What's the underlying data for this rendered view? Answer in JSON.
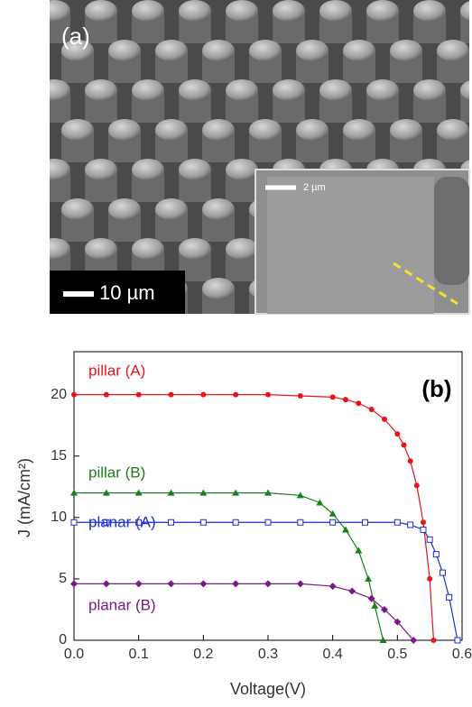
{
  "image_panel": {
    "label": "(a)",
    "scale_bar": "10 µm",
    "inset_scale_bar": "2 µm"
  },
  "chart_data": {
    "type": "line",
    "label": "(b)",
    "x_label": "Voltage(V)",
    "y_label": "J (mA/cm²)",
    "xlim": [
      0,
      0.6
    ],
    "xticks": [
      {
        "value": 0,
        "label": "0.0"
      },
      0.1,
      0.2,
      0.3,
      0.4,
      0.5,
      0.6
    ],
    "ylim": [
      0,
      23.5
    ],
    "yticks": [
      0,
      5,
      10,
      15,
      20
    ],
    "series": [
      {
        "name": "pillar (A)",
        "color": "#e8141c",
        "marker": "circle",
        "x": [
          0,
          0.05,
          0.1,
          0.15,
          0.2,
          0.25,
          0.3,
          0.35,
          0.4,
          0.42,
          0.44,
          0.46,
          0.48,
          0.5,
          0.51,
          0.52,
          0.53,
          0.54,
          0.55,
          0.556
        ],
        "values": [
          20,
          20,
          20,
          20,
          20,
          20,
          20,
          19.9,
          19.8,
          19.6,
          19.3,
          18.8,
          18,
          16.8,
          15.9,
          14.6,
          12.6,
          9.6,
          5,
          0
        ]
      },
      {
        "name": "pillar (B)",
        "color": "#1a7f1a",
        "marker": "triangle",
        "x": [
          0,
          0.05,
          0.1,
          0.15,
          0.2,
          0.25,
          0.3,
          0.35,
          0.38,
          0.4,
          0.42,
          0.44,
          0.455,
          0.465,
          0.478
        ],
        "values": [
          12,
          12,
          12,
          12,
          12,
          12,
          12,
          11.8,
          11.2,
          10.3,
          9,
          7.3,
          5,
          2.8,
          0
        ]
      },
      {
        "name": "planar (A)",
        "color": "#1c2fd0",
        "marker": "square",
        "x": [
          0,
          0.05,
          0.1,
          0.15,
          0.2,
          0.25,
          0.3,
          0.35,
          0.4,
          0.45,
          0.5,
          0.52,
          0.54,
          0.55,
          0.56,
          0.57,
          0.58,
          0.593
        ],
        "values": [
          9.6,
          9.6,
          9.6,
          9.6,
          9.6,
          9.6,
          9.6,
          9.6,
          9.6,
          9.6,
          9.6,
          9.4,
          9,
          8.2,
          7,
          5.5,
          3.5,
          0
        ]
      },
      {
        "name": "planar (B)",
        "color": "#7a1a8a",
        "marker": "diamond",
        "x": [
          0,
          0.05,
          0.1,
          0.15,
          0.2,
          0.25,
          0.3,
          0.35,
          0.4,
          0.43,
          0.46,
          0.48,
          0.5,
          0.525
        ],
        "values": [
          4.6,
          4.6,
          4.6,
          4.6,
          4.6,
          4.6,
          4.6,
          4.6,
          4.4,
          4,
          3.4,
          2.5,
          1.5,
          0
        ]
      }
    ]
  }
}
